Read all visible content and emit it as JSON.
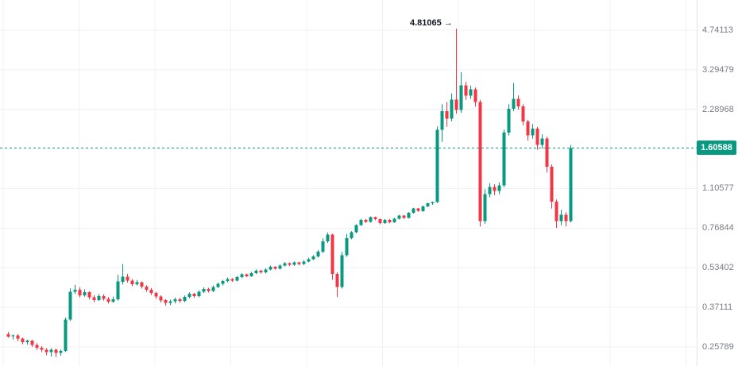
{
  "colors": {
    "background": "#ffffff",
    "up": "#089981",
    "down": "#f23645",
    "grid": "#eef1f6",
    "axis_text": "#787b86",
    "axis_border": "#e0e3eb",
    "price_line": "#089981",
    "badge_bg": "#089981",
    "badge_text": "#ffffff",
    "annotation_text": "#131722"
  },
  "chart_data": {
    "type": "candlestick",
    "scale": "log",
    "grid": true,
    "y_axis": {
      "side": "right",
      "tick_labels": [
        "4.74113",
        "3.29479",
        "2.28968",
        "1.10577",
        "0.76844",
        "0.53402",
        "0.37111",
        "0.25789"
      ],
      "tick_values": [
        4.74113,
        3.29479,
        2.28968,
        1.10577,
        0.76844,
        0.53402,
        0.37111,
        0.25789
      ]
    },
    "price_line": {
      "value": 1.60588,
      "label": "1.60588"
    },
    "annotation": {
      "text": "4.81065",
      "arrow": "→",
      "price": 4.81065,
      "candle_index": 94
    },
    "candles": [
      [
        0.29,
        0.296,
        0.281,
        0.284
      ],
      [
        0.284,
        0.289,
        0.276,
        0.287
      ],
      [
        0.287,
        0.29,
        0.272,
        0.278
      ],
      [
        0.278,
        0.281,
        0.264,
        0.269
      ],
      [
        0.269,
        0.276,
        0.263,
        0.273
      ],
      [
        0.273,
        0.275,
        0.258,
        0.263
      ],
      [
        0.263,
        0.267,
        0.251,
        0.256
      ],
      [
        0.256,
        0.26,
        0.246,
        0.251
      ],
      [
        0.251,
        0.255,
        0.239,
        0.246
      ],
      [
        0.246,
        0.255,
        0.236,
        0.251
      ],
      [
        0.251,
        0.254,
        0.235,
        0.244
      ],
      [
        0.244,
        0.252,
        0.238,
        0.249
      ],
      [
        0.249,
        0.338,
        0.246,
        0.332
      ],
      [
        0.332,
        0.442,
        0.328,
        0.428
      ],
      [
        0.428,
        0.456,
        0.42,
        0.436
      ],
      [
        0.436,
        0.446,
        0.407,
        0.414
      ],
      [
        0.414,
        0.438,
        0.409,
        0.426
      ],
      [
        0.426,
        0.43,
        0.399,
        0.407
      ],
      [
        0.407,
        0.415,
        0.389,
        0.397
      ],
      [
        0.397,
        0.42,
        0.393,
        0.412
      ],
      [
        0.412,
        0.418,
        0.395,
        0.401
      ],
      [
        0.401,
        0.408,
        0.384,
        0.391
      ],
      [
        0.391,
        0.41,
        0.387,
        0.4
      ],
      [
        0.4,
        0.5,
        0.395,
        0.47
      ],
      [
        0.47,
        0.552,
        0.458,
        0.492
      ],
      [
        0.492,
        0.505,
        0.466,
        0.474
      ],
      [
        0.474,
        0.481,
        0.451,
        0.459
      ],
      [
        0.459,
        0.477,
        0.453,
        0.468
      ],
      [
        0.468,
        0.471,
        0.441,
        0.449
      ],
      [
        0.449,
        0.455,
        0.428,
        0.436
      ],
      [
        0.436,
        0.443,
        0.416,
        0.424
      ],
      [
        0.424,
        0.428,
        0.402,
        0.41
      ],
      [
        0.41,
        0.414,
        0.388,
        0.396
      ],
      [
        0.396,
        0.4,
        0.377,
        0.386
      ],
      [
        0.386,
        0.398,
        0.379,
        0.392
      ],
      [
        0.392,
        0.406,
        0.385,
        0.4
      ],
      [
        0.4,
        0.405,
        0.387,
        0.394
      ],
      [
        0.394,
        0.414,
        0.389,
        0.408
      ],
      [
        0.408,
        0.426,
        0.403,
        0.42
      ],
      [
        0.42,
        0.424,
        0.405,
        0.412
      ],
      [
        0.412,
        0.434,
        0.407,
        0.428
      ],
      [
        0.428,
        0.446,
        0.423,
        0.44
      ],
      [
        0.44,
        0.444,
        0.425,
        0.432
      ],
      [
        0.432,
        0.454,
        0.427,
        0.448
      ],
      [
        0.448,
        0.466,
        0.443,
        0.46
      ],
      [
        0.46,
        0.478,
        0.454,
        0.472
      ],
      [
        0.472,
        0.488,
        0.467,
        0.482
      ],
      [
        0.482,
        0.486,
        0.469,
        0.474
      ],
      [
        0.474,
        0.496,
        0.471,
        0.49
      ],
      [
        0.49,
        0.508,
        0.485,
        0.502
      ],
      [
        0.502,
        0.506,
        0.489,
        0.494
      ],
      [
        0.494,
        0.514,
        0.491,
        0.508
      ],
      [
        0.508,
        0.526,
        0.503,
        0.52
      ],
      [
        0.52,
        0.524,
        0.506,
        0.512
      ],
      [
        0.512,
        0.532,
        0.507,
        0.526
      ],
      [
        0.526,
        0.544,
        0.521,
        0.538
      ],
      [
        0.538,
        0.542,
        0.524,
        0.53
      ],
      [
        0.53,
        0.551,
        0.526,
        0.545
      ],
      [
        0.545,
        0.562,
        0.54,
        0.556
      ],
      [
        0.556,
        0.56,
        0.542,
        0.548
      ],
      [
        0.548,
        0.566,
        0.544,
        0.56
      ],
      [
        0.56,
        0.564,
        0.546,
        0.552
      ],
      [
        0.552,
        0.572,
        0.548,
        0.566
      ],
      [
        0.566,
        0.585,
        0.561,
        0.578
      ],
      [
        0.578,
        0.6,
        0.573,
        0.592
      ],
      [
        0.592,
        0.628,
        0.587,
        0.618
      ],
      [
        0.618,
        0.7,
        0.611,
        0.68
      ],
      [
        0.68,
        0.738,
        0.671,
        0.725
      ],
      [
        0.725,
        0.73,
        0.478,
        0.505
      ],
      [
        0.505,
        0.512,
        0.408,
        0.448
      ],
      [
        0.448,
        0.618,
        0.441,
        0.6
      ],
      [
        0.6,
        0.728,
        0.591,
        0.7
      ],
      [
        0.7,
        0.748,
        0.694,
        0.74
      ],
      [
        0.74,
        0.796,
        0.734,
        0.79
      ],
      [
        0.79,
        0.838,
        0.784,
        0.83
      ],
      [
        0.83,
        0.836,
        0.806,
        0.815
      ],
      [
        0.815,
        0.856,
        0.81,
        0.85
      ],
      [
        0.85,
        0.855,
        0.826,
        0.835
      ],
      [
        0.835,
        0.84,
        0.796,
        0.805
      ],
      [
        0.805,
        0.836,
        0.799,
        0.83
      ],
      [
        0.83,
        0.835,
        0.804,
        0.812
      ],
      [
        0.812,
        0.844,
        0.806,
        0.838
      ],
      [
        0.838,
        0.868,
        0.832,
        0.862
      ],
      [
        0.862,
        0.867,
        0.838,
        0.845
      ],
      [
        0.845,
        0.891,
        0.839,
        0.885
      ],
      [
        0.885,
        0.926,
        0.879,
        0.92
      ],
      [
        0.92,
        0.925,
        0.892,
        0.9
      ],
      [
        0.9,
        0.946,
        0.894,
        0.94
      ],
      [
        0.94,
        0.971,
        0.934,
        0.965
      ],
      [
        0.965,
        0.981,
        0.952,
        0.975
      ],
      [
        0.975,
        1.96,
        0.968,
        1.9
      ],
      [
        1.9,
        2.4,
        1.7,
        2.25
      ],
      [
        2.25,
        2.45,
        1.95,
        2.1
      ],
      [
        2.1,
        2.65,
        2.05,
        2.5
      ],
      [
        2.5,
        4.81065,
        2.2,
        2.28
      ],
      [
        2.28,
        3.22,
        2.22,
        2.85
      ],
      [
        2.85,
        2.95,
        2.5,
        2.6
      ],
      [
        2.6,
        2.85,
        2.52,
        2.75
      ],
      [
        2.75,
        2.8,
        2.35,
        2.45
      ],
      [
        2.45,
        2.5,
        0.78,
        0.82
      ],
      [
        0.82,
        1.1,
        0.8,
        1.05
      ],
      [
        1.05,
        1.16,
        1.02,
        1.12
      ],
      [
        1.12,
        1.15,
        1.04,
        1.08
      ],
      [
        1.08,
        1.17,
        1.05,
        1.14
      ],
      [
        1.14,
        1.9,
        1.12,
        1.85
      ],
      [
        1.85,
        2.4,
        1.8,
        2.3
      ],
      [
        2.3,
        2.92,
        2.25,
        2.52
      ],
      [
        2.52,
        2.6,
        2.28,
        2.35
      ],
      [
        2.35,
        2.4,
        1.98,
        2.05
      ],
      [
        2.05,
        2.08,
        1.72,
        1.8
      ],
      [
        1.8,
        2.0,
        1.75,
        1.92
      ],
      [
        1.92,
        1.95,
        1.58,
        1.65
      ],
      [
        1.65,
        1.82,
        1.6,
        1.75
      ],
      [
        1.75,
        1.78,
        1.28,
        1.35
      ],
      [
        1.35,
        1.38,
        0.92,
        0.98
      ],
      [
        0.98,
        1.0,
        0.77,
        0.82
      ],
      [
        0.82,
        0.91,
        0.79,
        0.87
      ],
      [
        0.87,
        0.89,
        0.78,
        0.82
      ],
      [
        0.82,
        1.65,
        0.81,
        1.60588
      ]
    ]
  }
}
